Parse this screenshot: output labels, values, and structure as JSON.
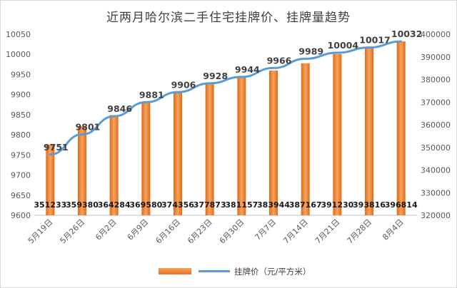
{
  "chart_data": {
    "type": "bar",
    "title": "近两月哈尔滨二手住宅挂牌价、挂牌量趋势",
    "categories": [
      "5月19日",
      "5月26日",
      "6月2日",
      "6月9日",
      "6月16日",
      "6月23日",
      "6月30日",
      "7月7日",
      "7月14日",
      "7月21日",
      "7月28日",
      "8月4日"
    ],
    "series": [
      {
        "name": "",
        "type": "bar",
        "axis": "right",
        "values": [
          351233,
          359380,
          364284,
          369580,
          374356,
          377873,
          381157,
          383944,
          387167,
          391230,
          393816,
          396814
        ],
        "labels": [
          "351233",
          "359380",
          "364284",
          "369580",
          "374356",
          "377873",
          "381157",
          "383944",
          "387167",
          "391230",
          "393816",
          "396814"
        ],
        "color": "#ed7d31"
      },
      {
        "name": "挂牌价（元/平方米）",
        "type": "line",
        "axis": "left",
        "values": [
          9751,
          9801,
          9846,
          9881,
          9906,
          9928,
          9944,
          9966,
          9989,
          10004,
          10017,
          10032
        ],
        "labels": [
          "9751",
          "9801",
          "9846",
          "9881",
          "9906",
          "9928",
          "9944",
          "9966",
          "9989",
          "10004",
          "10017",
          "10032"
        ],
        "color": "#5b9bd5"
      }
    ],
    "y_left": {
      "min": 9600,
      "max": 10050,
      "ticks": [
        "9600",
        "9650",
        "9700",
        "9750",
        "9800",
        "9850",
        "9900",
        "9950",
        "10000",
        "10050"
      ]
    },
    "y_right": {
      "min": 320000,
      "max": 400000,
      "ticks": [
        "320000",
        "330000",
        "340000",
        "350000",
        "360000",
        "370000",
        "380000",
        "390000",
        "400000"
      ]
    },
    "grid": false,
    "legend": "bottom"
  }
}
